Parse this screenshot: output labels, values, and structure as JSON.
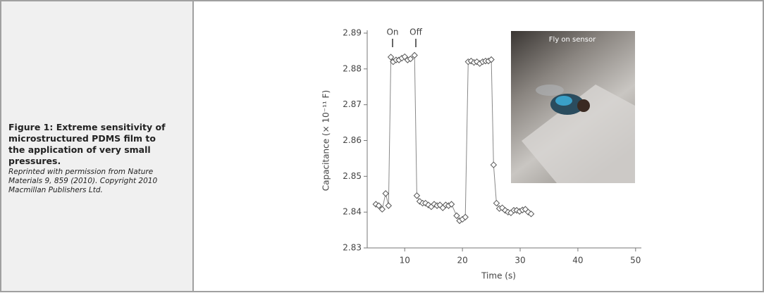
{
  "caption": {
    "title": "Figure 1: Extreme sensitivity of microstructured PDMS film to the application of very small pressures.",
    "credit": "Reprinted with permission from Nature Materials 9, 859 (2010). Copyright 2010 Macmillan Publishers Ltd."
  },
  "chart_data": {
    "type": "line",
    "x_label": "Time (s)",
    "y_label": "Capacitance (× 10⁻¹¹ F)",
    "annotations": [
      "On",
      "Off",
      "Fly on sensor"
    ],
    "x": [
      5.0,
      5.5,
      6.1,
      6.7,
      7.2,
      7.6,
      8.0,
      8.5,
      9.0,
      9.5,
      10.0,
      10.5,
      11.0,
      11.7,
      12.1,
      12.6,
      13.1,
      13.6,
      14.1,
      14.6,
      15.1,
      15.6,
      16.1,
      16.6,
      17.1,
      17.6,
      18.1,
      19.0,
      19.5,
      20.0,
      20.5,
      21.0,
      21.5,
      22.0,
      22.5,
      23.0,
      23.5,
      24.0,
      24.5,
      25.0,
      25.4,
      25.9,
      26.4,
      26.9,
      27.4,
      27.9,
      28.4,
      28.9,
      29.4,
      29.9,
      30.4,
      30.9,
      31.4,
      31.9
    ],
    "values": [
      2.8422,
      2.8418,
      2.8408,
      2.8452,
      2.8418,
      2.8833,
      2.882,
      2.8825,
      2.8825,
      2.883,
      2.8834,
      2.8825,
      2.8828,
      2.8838,
      2.8446,
      2.843,
      2.8425,
      2.8425,
      2.842,
      2.8415,
      2.8422,
      2.8418,
      2.842,
      2.8412,
      2.842,
      2.8418,
      2.8422,
      2.839,
      2.8376,
      2.838,
      2.8386,
      2.882,
      2.8822,
      2.8818,
      2.882,
      2.8815,
      2.882,
      2.8822,
      2.8822,
      2.8826,
      2.8532,
      2.8425,
      2.841,
      2.8412,
      2.8405,
      2.84,
      2.8398,
      2.8405,
      2.8405,
      2.8402,
      2.8406,
      2.8408,
      2.84,
      2.8395
    ],
    "color": "#555555",
    "xlim": [
      3.5,
      51
    ],
    "xticks": [
      10,
      20,
      30,
      40,
      50
    ],
    "ylim": [
      2.83,
      2.89
    ],
    "yticks": [
      2.83,
      2.84,
      2.85,
      2.86,
      2.87,
      2.88,
      2.89
    ]
  }
}
